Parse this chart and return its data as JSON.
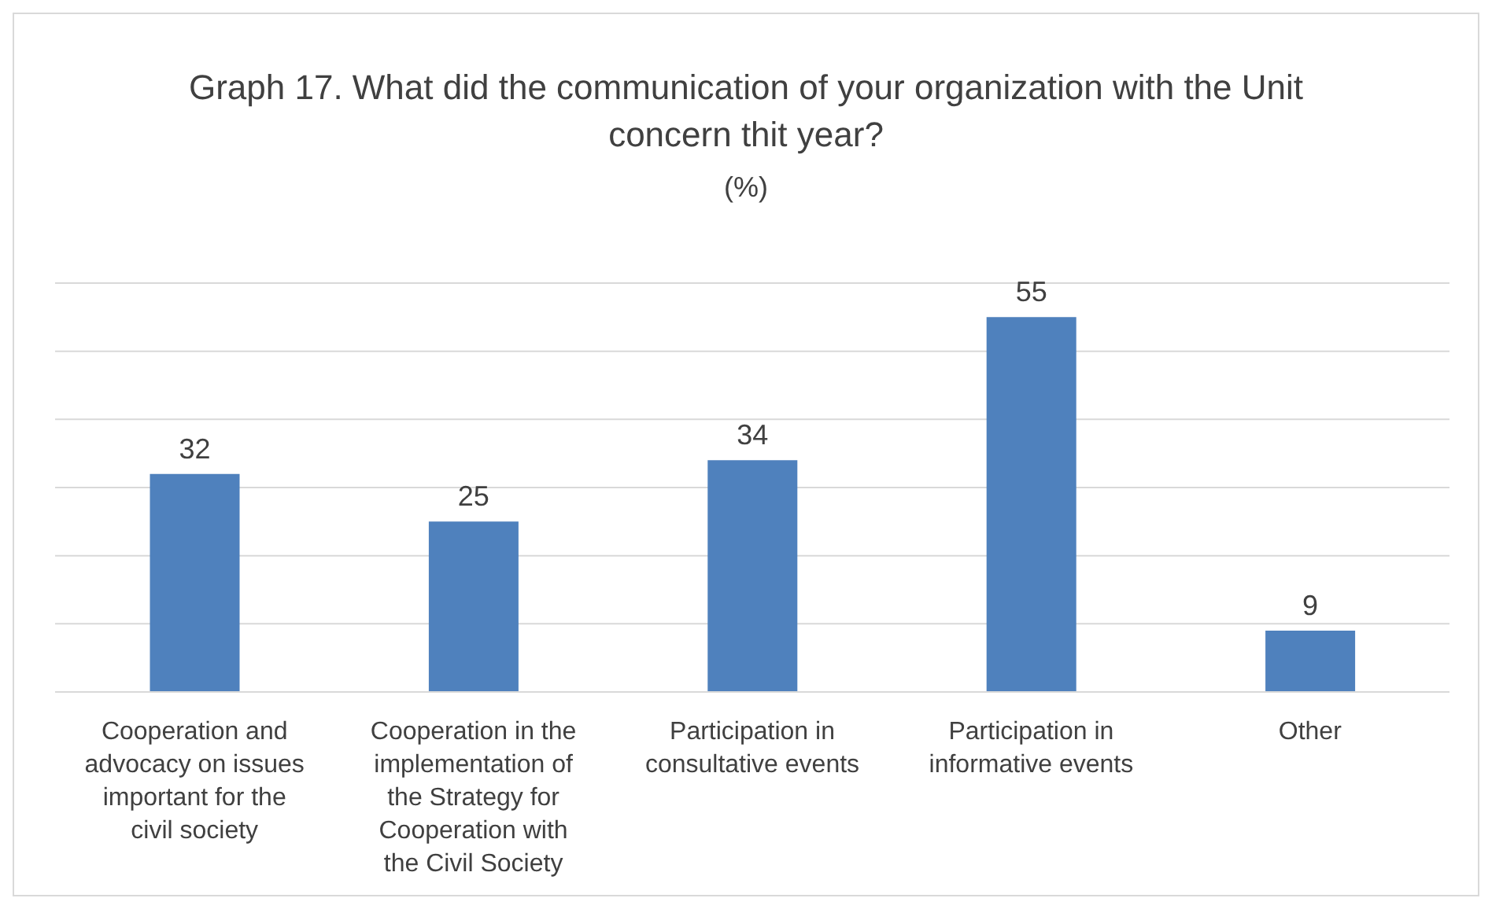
{
  "chart_data": {
    "type": "bar",
    "title": "Graph 17. What did the communication of your organization with the Unit concern thit year?",
    "subtitle": "(%)",
    "categories": [
      "Cooperation and advocacy on issues important for the civil society",
      "Cooperation in the implementation of the Strategy for Cooperation with the Civil Society",
      "Participation in consultative events",
      "Participation in informative events",
      "Other"
    ],
    "values": [
      32,
      25,
      34,
      55,
      9
    ],
    "color": "#4f81bd",
    "data_labels": true,
    "ylim": [
      0,
      60
    ],
    "yticks": [
      {
        "value": 0,
        "label": null
      },
      {
        "value": 10,
        "label": null
      },
      {
        "value": 20,
        "label": null
      },
      {
        "value": 30,
        "label": null
      },
      {
        "value": 40,
        "label": null
      },
      {
        "value": 50,
        "label": null
      },
      {
        "value": 60,
        "label": null
      }
    ],
    "grid": "y",
    "tick_labels": "x",
    "legend": false
  }
}
